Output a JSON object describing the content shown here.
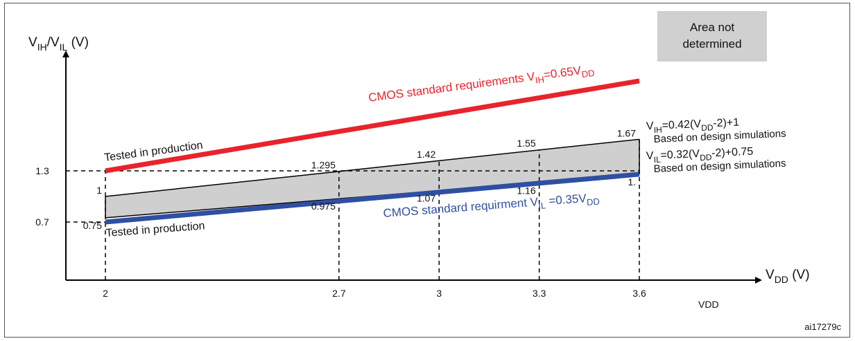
{
  "figure_id": "ai17279c",
  "legend": {
    "label_line1": "Area not",
    "label_line2": "determined",
    "color": "#d0d0d0"
  },
  "chart_data": {
    "type": "line",
    "x": [
      2,
      2.7,
      3,
      3.3,
      3.6
    ],
    "x_tick_labels": [
      "2",
      "2.7",
      "3",
      "3.3",
      "3.6"
    ],
    "xlim": [
      2,
      3.6
    ],
    "y_tick_labels": [
      "1.3",
      "0.7"
    ],
    "xlabel_main": "V",
    "xlabel_sub": "DD",
    "xlabel_unit": " (V)",
    "xlabel_secondary": "VDD",
    "ylabel_v1": "V",
    "ylabel_sub1": "IH",
    "ylabel_slash": "/V",
    "ylabel_sub2": "IL",
    "ylabel_unit": " (V)",
    "colors": {
      "vih_cmos": "#e8232d",
      "vil_cmos": "#2f4fa2",
      "sim": "#000000",
      "area": "#cfcfcf"
    },
    "series": [
      {
        "key": "vih_cmos",
        "values": [
          1.3,
          1.755,
          1.95,
          2.145,
          2.34
        ]
      },
      {
        "key": "vih_sim",
        "values": [
          1.0,
          1.295,
          1.42,
          1.55,
          1.67
        ]
      },
      {
        "key": "vil_sim",
        "values": [
          0.75,
          0.975,
          1.07,
          1.16,
          1.26
        ]
      },
      {
        "key": "vil_cmos",
        "values": [
          0.7,
          0.945,
          1.05,
          1.155,
          1.26
        ]
      }
    ],
    "data_labels": [
      {
        "x": 2,
        "y": 1.0,
        "text": "1"
      },
      {
        "x": 2,
        "y": 0.75,
        "text": "0.75"
      },
      {
        "x": 2.7,
        "y": 1.295,
        "text": "1.295"
      },
      {
        "x": 2.7,
        "y": 0.975,
        "text": "0.975"
      },
      {
        "x": 3,
        "y": 1.42,
        "text": "1.42"
      },
      {
        "x": 3,
        "y": 1.07,
        "text": "1.07"
      },
      {
        "x": 3.3,
        "y": 1.55,
        "text": "1.55"
      },
      {
        "x": 3.3,
        "y": 1.16,
        "text": "1.16"
      },
      {
        "x": 3.6,
        "y": 1.67,
        "text": "1.67"
      },
      {
        "x": 3.6,
        "y": 1.26,
        "text": "1."
      }
    ],
    "annotations": {
      "cmos_vih_prefix": "CMOS standard requirements V",
      "cmos_vih_sub1": "IH",
      "cmos_vih_mid": "=0.65V",
      "cmos_vih_sub2": "DD",
      "cmos_vil_prefix": "CMOS standard requirment V",
      "cmos_vil_sub1": "IL",
      "cmos_vil_mid": " =0.35V",
      "cmos_vil_sub2": "DD",
      "tested_top": "Tested in production",
      "tested_bottom": "Tested in production",
      "vih_eq_v": "V",
      "vih_eq_sub1": "IH",
      "vih_eq_mid": "=0.42(V",
      "vih_eq_sub2": "DD",
      "vih_eq_end": "-2)+1",
      "vih_note": "Based on design simulations",
      "vil_eq_v": "V",
      "vil_eq_sub1": "IL",
      "vil_eq_mid": "=0.32(V",
      "vil_eq_sub2": "DD",
      "vil_eq_end": "-2)+0.75",
      "vil_note": "Based on design simulations"
    }
  }
}
